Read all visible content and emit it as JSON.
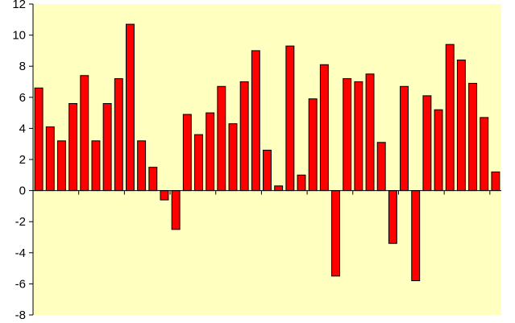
{
  "chart_data": {
    "type": "bar",
    "title": "",
    "xlabel": "",
    "ylabel": "",
    "ylim": [
      -8,
      12
    ],
    "yticks": [
      12,
      10,
      8,
      6,
      4,
      2,
      0,
      -2,
      -4,
      -6,
      -8
    ],
    "grid": false,
    "legend": "none",
    "colors": {
      "plot_background": "#FFFFC0",
      "bar_fill": "#FF0000",
      "bar_stroke": "#000000",
      "axis": "#000000"
    },
    "values": [
      6.6,
      4.1,
      3.2,
      5.6,
      7.4,
      3.2,
      5.6,
      7.2,
      10.7,
      3.2,
      1.5,
      -0.6,
      -2.5,
      4.9,
      3.6,
      5.0,
      6.7,
      4.3,
      7.0,
      9.0,
      2.6,
      0.3,
      9.3,
      1.0,
      5.9,
      8.1,
      -5.5,
      7.2,
      7.0,
      7.5,
      3.1,
      -3.4,
      6.7,
      -5.8,
      6.1,
      5.2,
      9.4,
      8.4,
      6.9,
      4.7,
      1.2
    ]
  }
}
